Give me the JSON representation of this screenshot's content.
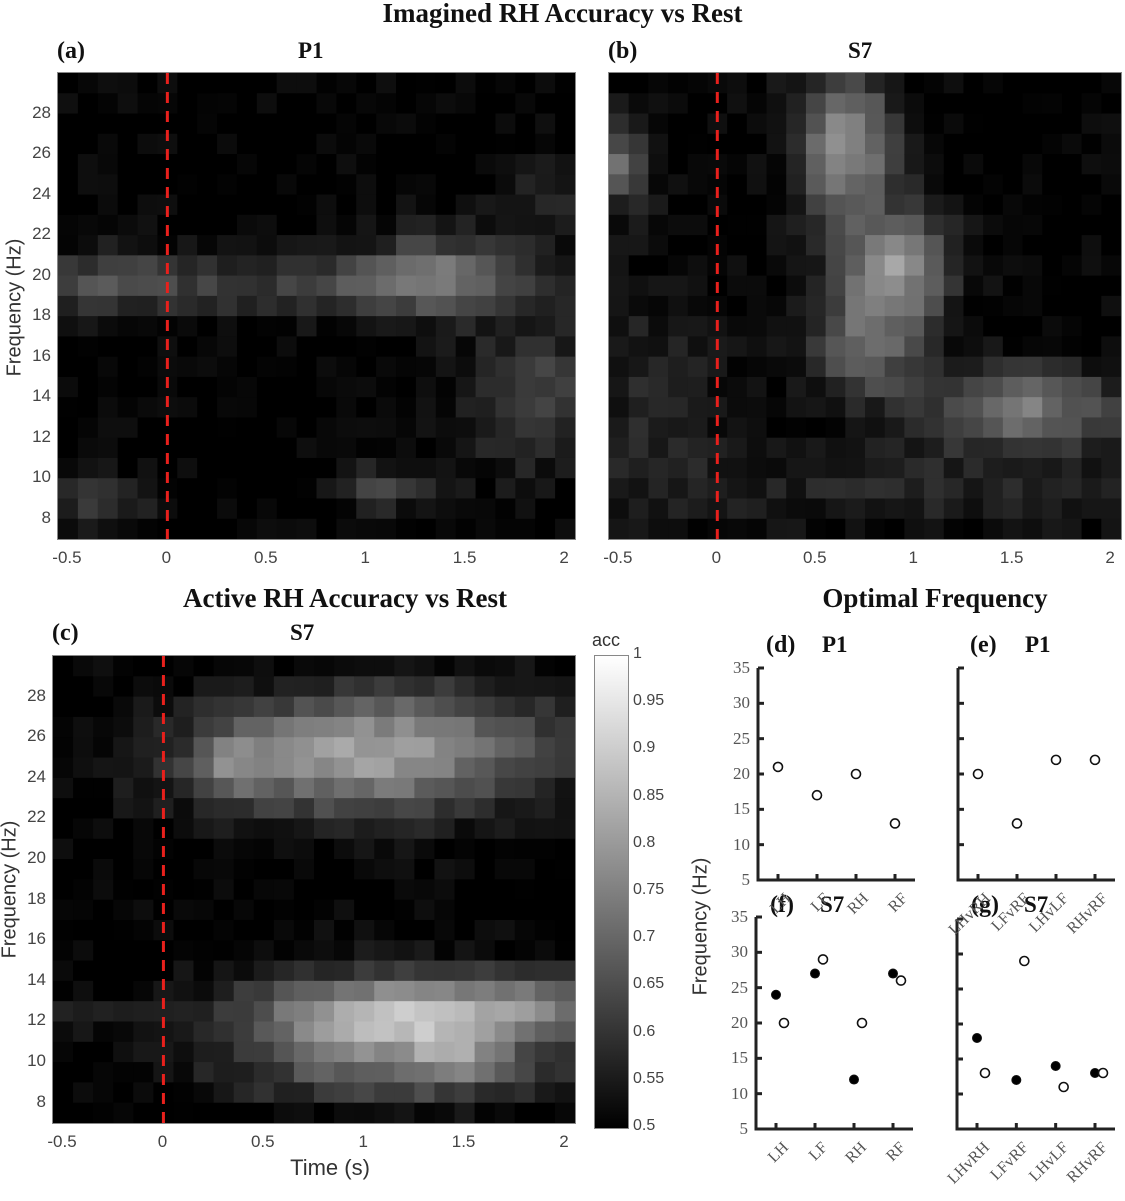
{
  "titles": {
    "top": "Imagined RH Accuracy vs Rest",
    "bottom_left": "Active RH Accuracy vs Rest",
    "bottom_right": "Optimal Frequency"
  },
  "panels": {
    "a": {
      "letter": "(a)",
      "subject": "P1"
    },
    "b": {
      "letter": "(b)",
      "subject": "S7"
    },
    "c": {
      "letter": "(c)",
      "subject": "S7"
    },
    "d": {
      "letter": "(d)",
      "subject": "P1"
    },
    "e": {
      "letter": "(e)",
      "subject": "P1"
    },
    "f": {
      "letter": "(f)",
      "subject": "S7"
    },
    "g": {
      "letter": "(g)",
      "subject": "S7"
    }
  },
  "axes": {
    "heat_ylabel": "Frequency (Hz)",
    "heat_xlabel": "Time (s)",
    "heat_xticks": [
      "-0.5",
      "0",
      "0.5",
      "1",
      "1.5",
      "2"
    ],
    "heat_yticks": [
      "28",
      "26",
      "24",
      "22",
      "20",
      "18",
      "16",
      "14",
      "12",
      "10",
      "8"
    ],
    "scatter_ylabel": "Frequency (Hz)",
    "scatter_yticks": [
      "35",
      "30",
      "25",
      "20",
      "15",
      "10",
      "5"
    ],
    "colorbar_label": "acc",
    "colorbar_ticks": [
      "1",
      "0.95",
      "0.9",
      "0.85",
      "0.8",
      "0.75",
      "0.7",
      "0.65",
      "0.6",
      "0.55",
      "0.5"
    ]
  },
  "colors": {
    "onset_line": "#e8201c",
    "colormap_low": "#000000",
    "colormap_high": "#ffffff"
  },
  "chart_data": [
    {
      "id": "a",
      "type": "heatmap",
      "title": "P1",
      "suptitle": "Imagined RH Accuracy vs Rest",
      "xlabel": "",
      "ylabel": "Frequency (Hz)",
      "xlim": [
        -0.55,
        2.05
      ],
      "ylim": [
        7,
        30
      ],
      "colormap": "gray",
      "clim": [
        0.5,
        1
      ],
      "annotation": "red dashed vertical line at t=0",
      "description": "Mostly dark (~0.5). Band of moderate accuracy (~0.6-0.7) around 18-21 Hz spanning -0.4 to 1.9 s, peaking ~0.72 near 1.2-1.5 s at 20 Hz; moderate patch 8-10 Hz pre-onset and at ~1-1.2 s; late increase 11-17 Hz after 1.5 s."
    },
    {
      "id": "b",
      "type": "heatmap",
      "title": "S7",
      "xlabel": "",
      "ylabel": "",
      "xlim": [
        -0.55,
        2.05
      ],
      "ylim": [
        7,
        30
      ],
      "colormap": "gray",
      "clim": [
        0.5,
        1
      ],
      "annotation": "red dashed vertical line at t=0",
      "description": "High accuracy (~0.75-0.8) region 0.4-1.0 s at 18-29 Hz, peaking ~0.82 near 0.9 s / 20 Hz; second region 1.2-2.0 s at 11-15 Hz (~0.75); pre-onset patch at 24-27 Hz around -0.5 s (~0.7)."
    },
    {
      "id": "c",
      "type": "heatmap",
      "title": "S7",
      "suptitle": "Active RH Accuracy vs Rest",
      "xlabel": "Time (s)",
      "ylabel": "Frequency (Hz)",
      "xlim": [
        -0.55,
        2.05
      ],
      "ylim": [
        7,
        30
      ],
      "colormap": "gray",
      "clim": [
        0.5,
        1
      ],
      "colorbar_label": "acc",
      "annotation": "red dashed vertical line at t=0",
      "description": "High accuracy band 22-28 Hz from 0.2 to 2.0 s (~0.8-0.85); strongest band 10-14 Hz from 0.5 to 2.0 s (~0.9-0.95, peak near 1.4 s at 10 Hz and 1.9 s at 13 Hz); dark 16-21 Hz and pre-onset."
    },
    {
      "id": "d",
      "type": "scatter",
      "title": "P1",
      "categories": [
        "LH",
        "LF",
        "RH",
        "RF"
      ],
      "ylabel": "Frequency (Hz)",
      "ylim": [
        5,
        35
      ],
      "series": [
        {
          "name": "open",
          "marker": "open-circle",
          "values": [
            21,
            17,
            20,
            13
          ]
        }
      ]
    },
    {
      "id": "e",
      "type": "scatter",
      "title": "P1",
      "categories": [
        "LHvRH",
        "LFvRF",
        "LHvLF",
        "RHvRF"
      ],
      "ylim": [
        5,
        35
      ],
      "series": [
        {
          "name": "open",
          "marker": "open-circle",
          "values": [
            20,
            13,
            22,
            22
          ]
        }
      ]
    },
    {
      "id": "f",
      "type": "scatter",
      "title": "S7",
      "categories": [
        "LH",
        "LF",
        "RH",
        "RF"
      ],
      "ylabel": "Frequency (Hz)",
      "ylim": [
        5,
        35
      ],
      "series": [
        {
          "name": "filled",
          "marker": "filled-circle",
          "values": [
            24,
            27,
            12,
            27
          ]
        },
        {
          "name": "open",
          "marker": "open-circle",
          "values": [
            20,
            29,
            20,
            26
          ]
        }
      ]
    },
    {
      "id": "g",
      "type": "scatter",
      "title": "S7",
      "categories": [
        "LHvRH",
        "LFvRF",
        "LHvLF",
        "RHvRF"
      ],
      "ylim": [
        5,
        35
      ],
      "series": [
        {
          "name": "filled",
          "marker": "filled-circle",
          "values": [
            18,
            12,
            14,
            13
          ]
        },
        {
          "name": "open",
          "marker": "open-circle",
          "values": [
            13,
            29,
            11,
            13
          ]
        }
      ]
    }
  ]
}
